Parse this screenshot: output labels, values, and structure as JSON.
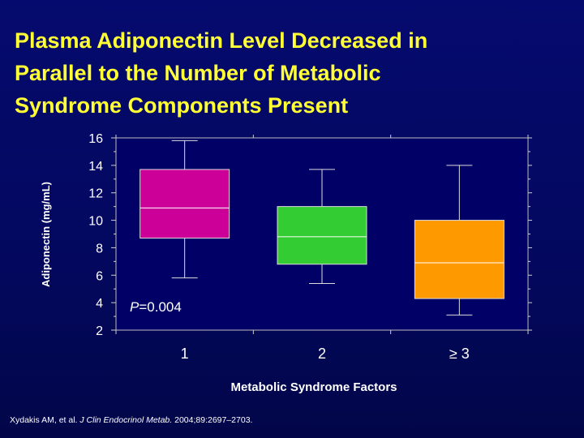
{
  "slide": {
    "title_lines": [
      "Plasma Adiponectin Level Decreased in",
      "Parallel to the Number of Metabolic",
      "Syndrome Components Present"
    ],
    "citation": {
      "authors": "Xydakis AM, et al.",
      "journal": "J Clin Endocrinol Metab.",
      "details": "2004;89:2697–2703."
    }
  },
  "chart_data": {
    "type": "box",
    "ylabel": "Adiponectin (mg/mL)",
    "xlabel": "Metabolic Syndrome Factors",
    "ylim": [
      2,
      16
    ],
    "yticks": [
      2,
      4,
      6,
      8,
      10,
      12,
      14,
      16
    ],
    "grid": false,
    "categories": [
      "1",
      "2",
      "≥ 3"
    ],
    "boxes": [
      {
        "category": "1",
        "min": 5.8,
        "q1": 8.7,
        "median": 10.9,
        "q3": 13.7,
        "max": 15.8,
        "color": "#cc0099"
      },
      {
        "category": "2",
        "min": 5.4,
        "q1": 6.8,
        "median": 8.8,
        "q3": 11.0,
        "max": 13.7,
        "color": "#33cc33"
      },
      {
        "category": "≥ 3",
        "min": 3.1,
        "q1": 4.3,
        "median": 6.9,
        "q3": 10.0,
        "max": 14.0,
        "color": "#ff9900"
      }
    ],
    "annotation": {
      "italic": "P",
      "text": "=0.004"
    },
    "colors": {
      "plot_background": "#000066",
      "axis": "#cccccc",
      "whisker": "#dddddd"
    }
  }
}
